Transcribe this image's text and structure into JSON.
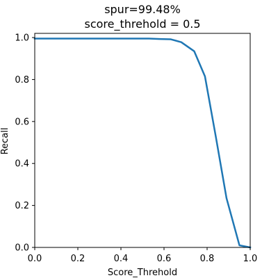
{
  "chart_data": {
    "type": "line",
    "title_line1": "spur=99.48%",
    "title_line2": "score_threhold = 0.5",
    "xlabel": "Score_Threhold",
    "ylabel": "Recall",
    "xlim": [
      0.0,
      1.0
    ],
    "ylim": [
      0.0,
      1.02
    ],
    "grid": false,
    "line_color": "#1f77b4",
    "xticks": [
      "0.0",
      "0.2",
      "0.4",
      "0.6",
      "0.8",
      "1.0"
    ],
    "yticks": [
      "0.0",
      "0.2",
      "0.4",
      "0.6",
      "0.8",
      "1.0"
    ],
    "series": [
      {
        "x": [
          0.0,
          0.05,
          0.1,
          0.15,
          0.2,
          0.25,
          0.3,
          0.35,
          0.4,
          0.45,
          0.5,
          0.53,
          0.58,
          0.63,
          0.68,
          0.74,
          0.79,
          0.84,
          0.89,
          0.95,
          1.0
        ],
        "y": [
          0.995,
          0.995,
          0.995,
          0.995,
          0.995,
          0.995,
          0.995,
          0.995,
          0.995,
          0.995,
          0.995,
          0.995,
          0.993,
          0.992,
          0.978,
          0.935,
          0.815,
          0.53,
          0.235,
          0.01,
          0.0
        ]
      }
    ]
  }
}
